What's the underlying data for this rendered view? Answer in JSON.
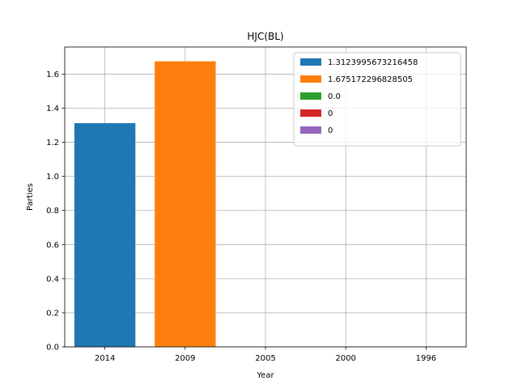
{
  "chart_data": {
    "type": "bar",
    "title": "HJC(BL)",
    "xlabel": "Year",
    "ylabel": "Parties",
    "categories": [
      "2014",
      "2009",
      "2005",
      "2000",
      "1996"
    ],
    "values": [
      1.3123995673216458,
      1.675172296828505,
      0.0,
      0,
      0
    ],
    "colors": [
      "#1f77b4",
      "#ff7f0e",
      "#2ca02c",
      "#d62728",
      "#9467bd"
    ],
    "yticks": [
      "0.0",
      "0.2",
      "0.4",
      "0.6",
      "0.8",
      "1.0",
      "1.2",
      "1.4",
      "1.6"
    ],
    "ylim": [
      0,
      1.759
    ],
    "grid": true,
    "legend": {
      "placement": "top-right",
      "entries": [
        "1.3123995673216458",
        "1.675172296828505",
        "0.0",
        "0",
        "0"
      ]
    }
  }
}
